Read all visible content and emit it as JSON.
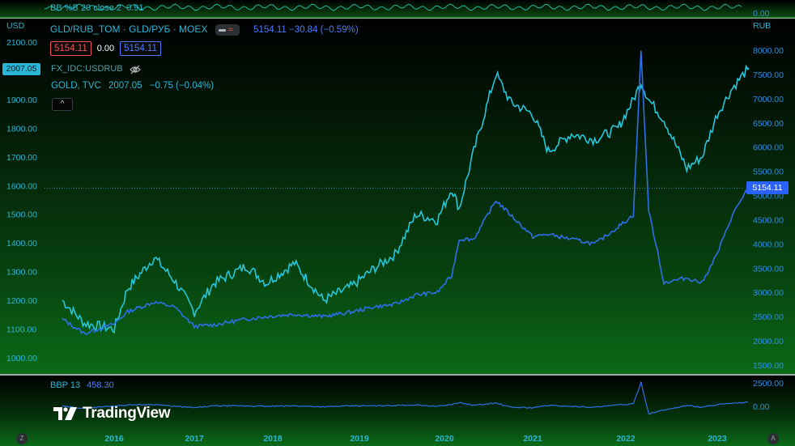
{
  "top_indicator": {
    "label": "BB %B 20 close 2",
    "value": "0.91",
    "axis_label": "0.00"
  },
  "legend": {
    "symbol": "GLD/RUB_TOM · GLD/РУБ · MOEX",
    "last": "5154.11",
    "change": "−30.84 (−0.59%)",
    "bid": "5154.11",
    "spread": "0.00",
    "ask": "5154.11",
    "overlay1": "FX_IDC:USDRUB",
    "overlay2_name": "GOLD, TVC",
    "overlay2_last": "2007.05",
    "overlay2_change": "−0.75 (−0.04%)",
    "collapse": "^"
  },
  "axes": {
    "left_unit": "USD",
    "right_unit": "RUB",
    "left_ticks": [
      "2100.00",
      "2000.00",
      "1900.00",
      "1800.00",
      "1700.00",
      "1600.00",
      "1500.00",
      "1400.00",
      "1300.00",
      "1200.00",
      "1100.00",
      "1000.00"
    ],
    "right_ticks": [
      "8000.00",
      "7500.00",
      "7000.00",
      "6500.00",
      "6000.00",
      "5500.00",
      "5000.00",
      "4500.00",
      "4000.00",
      "3500.00",
      "3000.00",
      "2500.00",
      "2000.00",
      "1500.00"
    ],
    "time_ticks": [
      "2016",
      "2017",
      "2018",
      "2019",
      "2020",
      "2021",
      "2022",
      "2023"
    ],
    "left_badge": "2007.05",
    "right_badge": "5154.11",
    "corner_left": "Z",
    "corner_right": "A"
  },
  "bbp": {
    "label": "BBP 13",
    "value": "458.30",
    "ticks": [
      "2500.00",
      "0.00"
    ]
  },
  "logo": {
    "text": "TradingView"
  },
  "colors": {
    "gold_usd": "#26c6da",
    "gold_rub": "#2f6fe8",
    "background_top": "#000000",
    "background_bottom": "#0b6a17"
  },
  "chart_data": {
    "type": "line",
    "title": "GLD/RUB_TOM · GLD/РУБ · MOEX",
    "x": [
      "2015-06",
      "2015-09",
      "2016-01",
      "2016-03",
      "2016-07",
      "2016-10",
      "2017-01",
      "2017-04",
      "2017-09",
      "2017-12",
      "2018-04",
      "2018-08",
      "2018-12",
      "2019-03",
      "2019-06",
      "2019-09",
      "2019-12",
      "2020-02",
      "2020-03",
      "2020-05",
      "2020-08",
      "2020-10",
      "2021-01",
      "2021-03",
      "2021-06",
      "2021-09",
      "2021-12",
      "2022-02",
      "2022-03",
      "2022-04",
      "2022-06",
      "2022-09",
      "2022-11",
      "2023-01",
      "2023-03",
      "2023-05"
    ],
    "series": [
      {
        "name": "GOLD, TVC",
        "axis": "left",
        "values": [
          1200,
          1120,
          1100,
          1240,
          1350,
          1270,
          1160,
          1260,
          1320,
          1260,
          1330,
          1200,
          1250,
          1310,
          1360,
          1500,
          1480,
          1590,
          1520,
          1720,
          1990,
          1890,
          1850,
          1720,
          1780,
          1760,
          1800,
          1900,
          1960,
          1900,
          1830,
          1660,
          1700,
          1850,
          1940,
          2007
        ]
      },
      {
        "name": "GLD/RUB_TOM",
        "axis": "right",
        "values": [
          2450,
          2150,
          2350,
          2600,
          2800,
          2700,
          2300,
          2330,
          2450,
          2500,
          2550,
          2500,
          2600,
          2700,
          2750,
          2950,
          3000,
          3350,
          4100,
          4100,
          4900,
          4600,
          4150,
          4200,
          4100,
          4000,
          4350,
          4600,
          8000,
          4700,
          3200,
          3300,
          3200,
          3800,
          4600,
          5154
        ]
      },
      {
        "name": "BBP 13",
        "axis": "bottom",
        "values": [
          0,
          -200,
          50,
          150,
          200,
          0,
          -150,
          50,
          50,
          0,
          50,
          -50,
          50,
          50,
          100,
          150,
          0,
          200,
          400,
          100,
          350,
          -100,
          -150,
          100,
          0,
          -100,
          150,
          250,
          2600,
          -800,
          -400,
          100,
          -100,
          200,
          300,
          458
        ]
      }
    ],
    "ylim_left": [
      1000,
      2100
    ],
    "ylim_right": [
      1500,
      8000
    ],
    "grid": false
  }
}
